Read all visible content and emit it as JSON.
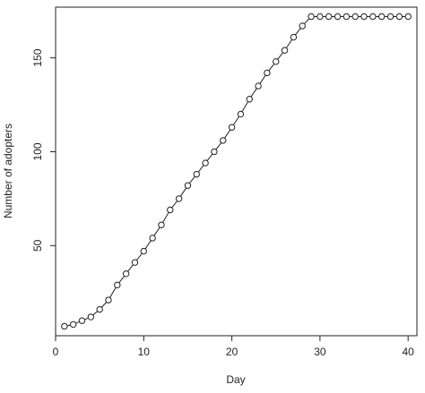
{
  "chart_data": {
    "type": "line",
    "title": "",
    "xlabel": "Day",
    "ylabel": "Number of adopters",
    "xlim": [
      0,
      41
    ],
    "ylim": [
      2,
      177
    ],
    "x_ticks": [
      0,
      10,
      20,
      30,
      40
    ],
    "y_ticks": [
      50,
      100,
      150
    ],
    "grid": false,
    "legend": "none",
    "marker": "open-circle",
    "line_color": "#222222",
    "series": [
      {
        "x": [
          1,
          2,
          3,
          4,
          5,
          6,
          7,
          8,
          9,
          10,
          11,
          12,
          13,
          14,
          15,
          16,
          17,
          18,
          19,
          20,
          21,
          22,
          23,
          24,
          25,
          26,
          27,
          28,
          29,
          30,
          31,
          32,
          33,
          34,
          35,
          36,
          37,
          38,
          39,
          40
        ],
        "values": [
          7,
          8,
          10,
          12,
          16,
          21,
          29,
          35,
          41,
          47,
          54,
          61,
          69,
          75,
          82,
          88,
          94,
          100,
          106,
          113,
          120,
          128,
          135,
          142,
          148,
          154,
          161,
          167,
          172,
          172,
          172,
          172,
          172,
          172,
          172,
          172,
          172,
          172,
          172,
          172
        ]
      }
    ]
  }
}
